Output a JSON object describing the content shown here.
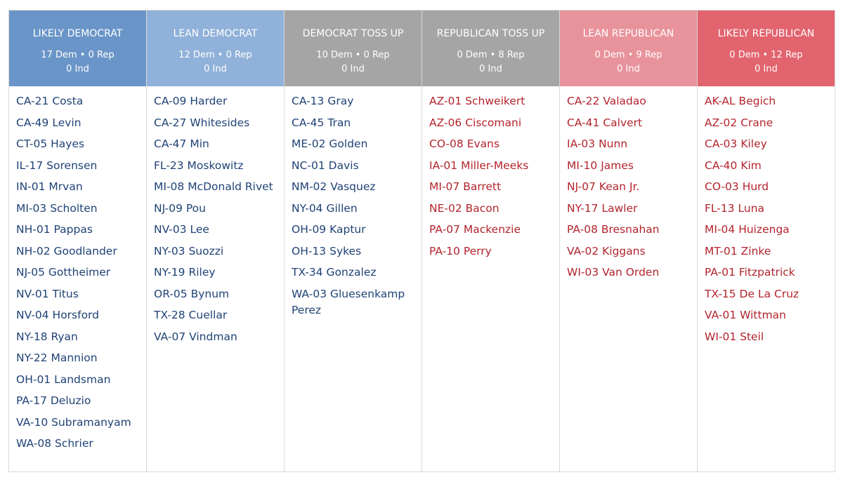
{
  "columns": [
    {
      "title": "LIKELY DEMOCRAT",
      "summary": "17 Dem • 0 Rep",
      "ind": "0 Ind",
      "races": [
        "CA-21 Costa",
        "CA-49 Levin",
        "CT-05 Hayes",
        "IL-17 Sorensen",
        "IN-01 Mrvan",
        "MI-03 Scholten",
        "NH-01 Pappas",
        "NH-02 Goodlander",
        "NJ-05 Gottheimer",
        "NV-01 Titus",
        "NV-04 Horsford",
        "NY-18 Ryan",
        "NY-22 Mannion",
        "OH-01 Landsman",
        "PA-17 Deluzio",
        "VA-10 Subramanyam",
        "WA-08 Schrier"
      ]
    },
    {
      "title": "LEAN DEMOCRAT",
      "summary": "12 Dem • 0 Rep",
      "ind": "0 Ind",
      "races": [
        "CA-09 Harder",
        "CA-27 Whitesides",
        "CA-47 Min",
        "FL-23 Moskowitz",
        "MI-08 McDonald Rivet",
        "NJ-09 Pou",
        "NV-03 Lee",
        "NY-03 Suozzi",
        "NY-19 Riley",
        "OR-05 Bynum",
        "TX-28 Cuellar",
        "VA-07 Vindman"
      ]
    },
    {
      "title": "DEMOCRAT TOSS UP",
      "summary": "10 Dem • 0 Rep",
      "ind": "0 Ind",
      "races": [
        "CA-13 Gray",
        "CA-45 Tran",
        "ME-02 Golden",
        "NC-01 Davis",
        "NM-02 Vasquez",
        "NY-04 Gillen",
        "OH-09 Kaptur",
        "OH-13 Sykes",
        "TX-34 Gonzalez",
        "WA-03 Gluesenkamp Perez"
      ]
    },
    {
      "title": "REPUBLICAN TOSS UP",
      "summary": "0 Dem • 8 Rep",
      "ind": "0 Ind",
      "races": [
        "AZ-01 Schweikert",
        "AZ-06 Ciscomani",
        "CO-08 Evans",
        "IA-01 Miller-Meeks",
        "MI-07 Barrett",
        "NE-02 Bacon",
        "PA-07 Mackenzie",
        "PA-10 Perry"
      ]
    },
    {
      "title": "LEAN REPUBLICAN",
      "summary": "0 Dem • 9 Rep",
      "ind": "0 Ind",
      "races": [
        "CA-22 Valadao",
        "CA-41 Calvert",
        "IA-03 Nunn",
        "MI-10 James",
        "NJ-07 Kean Jr.",
        "NY-17 Lawler",
        "PA-08 Bresnahan",
        "VA-02 Kiggans",
        "WI-03 Van Orden"
      ]
    },
    {
      "title": "LIKELY REPUBLICAN",
      "summary": "0 Dem • 12 Rep",
      "ind": "0 Ind",
      "races": [
        "AK-AL Begich",
        "AZ-02 Crane",
        "CA-03 Kiley",
        "CA-40 Kim",
        "CO-03 Hurd",
        "FL-13 Luna",
        "MI-04 Huizenga",
        "MT-01 Zinke",
        "PA-01 Fitzpatrick",
        "TX-15 De La Cruz",
        "VA-01 Wittman",
        "WI-01 Steil"
      ]
    }
  ]
}
